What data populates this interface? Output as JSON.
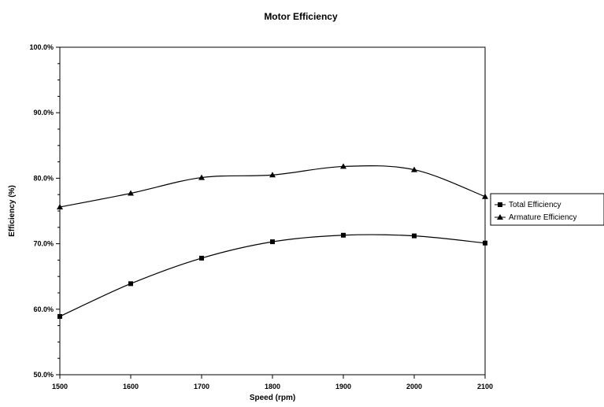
{
  "chart_data": {
    "type": "line",
    "title": "Motor Efficiency",
    "xlabel": "Speed (rpm)",
    "ylabel": "Efficiency (%)",
    "x": [
      1500,
      1600,
      1700,
      1800,
      1900,
      2000,
      2100
    ],
    "x_tick_labels": [
      "1500",
      "1600",
      "1700",
      "1800",
      "1900",
      "2000",
      "2100"
    ],
    "xlim": [
      1500,
      2100
    ],
    "ylim": [
      50,
      100
    ],
    "y_ticks": [
      50,
      60,
      70,
      80,
      90,
      100
    ],
    "y_tick_labels": [
      "50.0%",
      "60.0%",
      "70.0%",
      "80.0%",
      "90.0%",
      "100.0%"
    ],
    "grid": false,
    "legend_position": "right",
    "series": [
      {
        "name": "Total Efficiency",
        "marker": "square",
        "color": "#000000",
        "values": [
          58.9,
          63.9,
          67.8,
          70.3,
          71.3,
          71.2,
          70.1
        ]
      },
      {
        "name": "Armature Efficiency",
        "marker": "triangle",
        "color": "#000000",
        "values": [
          75.6,
          77.7,
          80.1,
          80.5,
          81.8,
          81.3,
          77.2
        ]
      }
    ]
  }
}
